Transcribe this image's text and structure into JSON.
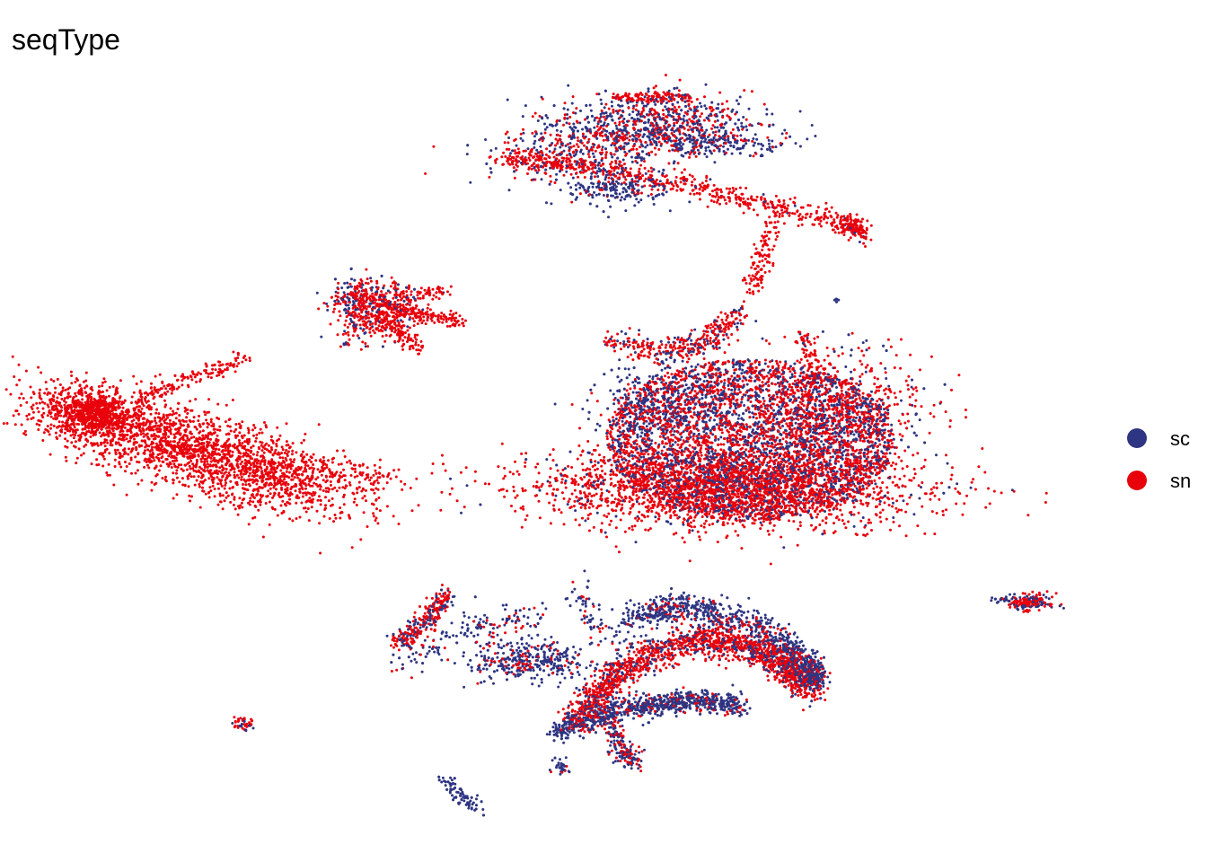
{
  "chart_data": {
    "type": "scatter",
    "title": "seqType",
    "xlabel": "",
    "ylabel": "",
    "axes_visible": false,
    "grid": false,
    "legend_position": "right",
    "series": [
      {
        "name": "sc",
        "color": "#2E3582"
      },
      {
        "name": "sn",
        "color": "#E8000B"
      }
    ]
  }
}
